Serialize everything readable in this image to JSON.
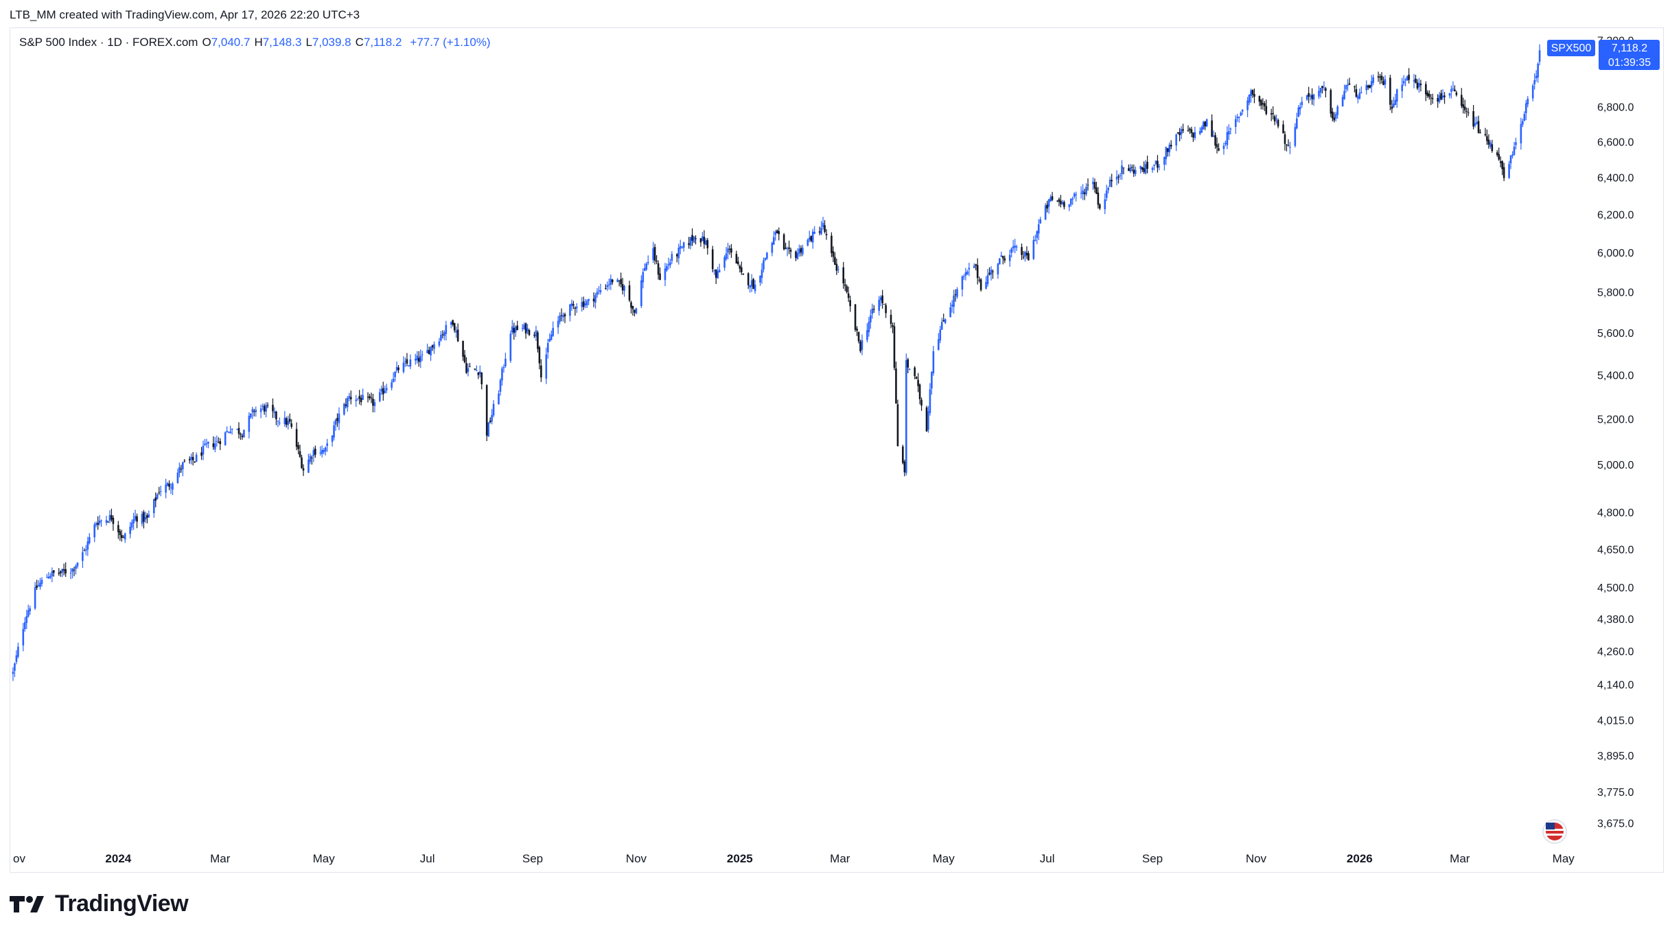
{
  "caption": "LTB_MM created with TradingView.com, Apr 17, 2026 22:20 UTC+3",
  "legend": {
    "symbol": "S&P 500 Index · 1D · FOREX.com",
    "open_label": "O",
    "open": "7,040.7",
    "high_label": "H",
    "high": "7,148.3",
    "low_label": "L",
    "low": "7,039.8",
    "close_label": "C",
    "close": "7,118.2",
    "change": "+77.7 (+1.10%)"
  },
  "price_tag": {
    "ticker": "SPX500",
    "price": "7,118.2",
    "countdown": "01:39:35"
  },
  "brand": {
    "name": "TradingView"
  },
  "colors": {
    "up": "#2962ff",
    "down": "#131722",
    "accent": "#2962ff",
    "grid_border": "#e0e3eb",
    "axis_text": "#131722"
  },
  "chart_data": {
    "type": "candlestick",
    "title": "S&P 500 Index · 1D · FOREX.com",
    "xlabel": "",
    "ylabel": "",
    "y_scale": "log",
    "grid": false,
    "ylim": [
      3620,
      7280
    ],
    "y_ticks": [
      "7,200.0",
      "6,800.0",
      "6,600.0",
      "6,400.0",
      "6,200.0",
      "6,000.0",
      "5,800.0",
      "5,600.0",
      "5,400.0",
      "5,200.0",
      "5,000.0",
      "4,800.0",
      "4,650.0",
      "4,500.0",
      "4,380.0",
      "4,260.0",
      "4,140.0",
      "4,015.0",
      "3,895.0",
      "3,775.0",
      "3,675.0"
    ],
    "y_tick_values": [
      7200,
      6800,
      6600,
      6400,
      6200,
      6000,
      5800,
      5600,
      5400,
      5200,
      5000,
      4800,
      4650,
      4500,
      4380,
      4260,
      4140,
      4015,
      3895,
      3775,
      3675
    ],
    "x_ticks": [
      "ov",
      "2024",
      "Mar",
      "May",
      "Jul",
      "Sep",
      "Nov",
      "2025",
      "Mar",
      "May",
      "Jul",
      "Sep",
      "Nov",
      "2026",
      "Mar",
      "May"
    ],
    "x_tick_dates": [
      "2023-11-01",
      "2024-01-01",
      "2024-03-01",
      "2024-05-01",
      "2024-07-01",
      "2024-09-01",
      "2024-11-01",
      "2025-01-01",
      "2025-03-01",
      "2025-05-01",
      "2025-07-01",
      "2025-09-01",
      "2025-11-01",
      "2026-01-01",
      "2026-03-01",
      "2026-05-01"
    ],
    "x_tick_bold": [
      false,
      true,
      false,
      false,
      false,
      false,
      false,
      true,
      false,
      false,
      false,
      false,
      false,
      true,
      false,
      false
    ],
    "series": [
      {
        "name": "SPX500",
        "points": [
          [
            "2023-10-31",
            4180
          ],
          [
            "2023-11-07",
            4380
          ],
          [
            "2023-11-14",
            4500
          ],
          [
            "2023-11-21",
            4550
          ],
          [
            "2023-11-28",
            4555
          ],
          [
            "2023-12-05",
            4570
          ],
          [
            "2023-12-12",
            4640
          ],
          [
            "2023-12-19",
            4760
          ],
          [
            "2023-12-28",
            4780
          ],
          [
            "2024-01-04",
            4690
          ],
          [
            "2024-01-11",
            4780
          ],
          [
            "2024-01-18",
            4770
          ],
          [
            "2024-01-25",
            4890
          ],
          [
            "2024-02-01",
            4920
          ],
          [
            "2024-02-08",
            5000
          ],
          [
            "2024-02-15",
            5020
          ],
          [
            "2024-02-22",
            5080
          ],
          [
            "2024-02-29",
            5100
          ],
          [
            "2024-03-07",
            5160
          ],
          [
            "2024-03-14",
            5140
          ],
          [
            "2024-03-21",
            5240
          ],
          [
            "2024-03-28",
            5250
          ],
          [
            "2024-04-04",
            5200
          ],
          [
            "2024-04-11",
            5180
          ],
          [
            "2024-04-15",
            5080
          ],
          [
            "2024-04-19",
            4980
          ],
          [
            "2024-04-25",
            5060
          ],
          [
            "2024-05-02",
            5060
          ],
          [
            "2024-05-09",
            5200
          ],
          [
            "2024-05-16",
            5300
          ],
          [
            "2024-05-23",
            5290
          ],
          [
            "2024-05-31",
            5270
          ],
          [
            "2024-06-07",
            5350
          ],
          [
            "2024-06-14",
            5430
          ],
          [
            "2024-06-21",
            5460
          ],
          [
            "2024-06-28",
            5480
          ],
          [
            "2024-07-05",
            5550
          ],
          [
            "2024-07-12",
            5620
          ],
          [
            "2024-07-16",
            5660
          ],
          [
            "2024-07-24",
            5430
          ],
          [
            "2024-08-01",
            5420
          ],
          [
            "2024-08-05",
            5140
          ],
          [
            "2024-08-12",
            5330
          ],
          [
            "2024-08-19",
            5610
          ],
          [
            "2024-08-27",
            5620
          ],
          [
            "2024-09-03",
            5600
          ],
          [
            "2024-09-06",
            5410
          ],
          [
            "2024-09-13",
            5620
          ],
          [
            "2024-09-20",
            5700
          ],
          [
            "2024-09-27",
            5740
          ],
          [
            "2024-10-04",
            5750
          ],
          [
            "2024-10-11",
            5810
          ],
          [
            "2024-10-18",
            5860
          ],
          [
            "2024-10-25",
            5820
          ],
          [
            "2024-10-31",
            5700
          ],
          [
            "2024-11-06",
            5930
          ],
          [
            "2024-11-11",
            6000
          ],
          [
            "2024-11-15",
            5870
          ],
          [
            "2024-11-22",
            5970
          ],
          [
            "2024-11-29",
            6030
          ],
          [
            "2024-12-06",
            6090
          ],
          [
            "2024-12-12",
            6050
          ],
          [
            "2024-12-18",
            5870
          ],
          [
            "2024-12-26",
            6030
          ],
          [
            "2025-01-02",
            5880
          ],
          [
            "2025-01-10",
            5830
          ],
          [
            "2025-01-17",
            6000
          ],
          [
            "2025-01-23",
            6110
          ],
          [
            "2025-01-27",
            6000
          ],
          [
            "2025-02-03",
            5990
          ],
          [
            "2025-02-10",
            6060
          ],
          [
            "2025-02-19",
            6140
          ],
          [
            "2025-02-24",
            5980
          ],
          [
            "2025-03-03",
            5850
          ],
          [
            "2025-03-10",
            5620
          ],
          [
            "2025-03-13",
            5530
          ],
          [
            "2025-03-19",
            5680
          ],
          [
            "2025-03-25",
            5770
          ],
          [
            "2025-04-01",
            5630
          ],
          [
            "2025-04-04",
            5070
          ],
          [
            "2025-04-08",
            4980
          ],
          [
            "2025-04-09",
            5450
          ],
          [
            "2025-04-14",
            5400
          ],
          [
            "2025-04-21",
            5160
          ],
          [
            "2025-04-25",
            5520
          ],
          [
            "2025-05-02",
            5680
          ],
          [
            "2025-05-12",
            5860
          ],
          [
            "2025-05-19",
            5940
          ],
          [
            "2025-05-23",
            5830
          ],
          [
            "2025-06-02",
            5950
          ],
          [
            "2025-06-11",
            6020
          ],
          [
            "2025-06-20",
            5970
          ],
          [
            "2025-06-27",
            6170
          ],
          [
            "2025-07-03",
            6280
          ],
          [
            "2025-07-11",
            6260
          ],
          [
            "2025-07-21",
            6310
          ],
          [
            "2025-07-28",
            6390
          ],
          [
            "2025-08-01",
            6230
          ],
          [
            "2025-08-08",
            6390
          ],
          [
            "2025-08-15",
            6450
          ],
          [
            "2025-08-22",
            6440
          ],
          [
            "2025-08-29",
            6450
          ],
          [
            "2025-09-05",
            6480
          ],
          [
            "2025-09-12",
            6590
          ],
          [
            "2025-09-19",
            6660
          ],
          [
            "2025-09-26",
            6640
          ],
          [
            "2025-10-03",
            6710
          ],
          [
            "2025-10-10",
            6550
          ],
          [
            "2025-10-17",
            6660
          ],
          [
            "2025-10-24",
            6790
          ],
          [
            "2025-10-29",
            6890
          ],
          [
            "2025-11-05",
            6800
          ],
          [
            "2025-11-13",
            6730
          ],
          [
            "2025-11-20",
            6560
          ],
          [
            "2025-11-28",
            6850
          ],
          [
            "2025-12-05",
            6870
          ],
          [
            "2025-12-11",
            6900
          ],
          [
            "2025-12-17",
            6720
          ],
          [
            "2025-12-24",
            6930
          ],
          [
            "2026-01-02",
            6860
          ],
          [
            "2026-01-09",
            6960
          ],
          [
            "2026-01-16",
            6940
          ],
          [
            "2026-01-20",
            6800
          ],
          [
            "2026-01-27",
            6980
          ],
          [
            "2026-02-03",
            6940
          ],
          [
            "2026-02-10",
            6880
          ],
          [
            "2026-02-17",
            6850
          ],
          [
            "2026-02-24",
            6900
          ],
          [
            "2026-03-03",
            6780
          ],
          [
            "2026-03-10",
            6700
          ],
          [
            "2026-03-17",
            6600
          ],
          [
            "2026-03-24",
            6520
          ],
          [
            "2026-03-27",
            6380
          ],
          [
            "2026-03-31",
            6500
          ],
          [
            "2026-04-03",
            6580
          ],
          [
            "2026-04-08",
            6780
          ],
          [
            "2026-04-13",
            6900
          ],
          [
            "2026-04-17",
            7118
          ]
        ]
      }
    ]
  }
}
